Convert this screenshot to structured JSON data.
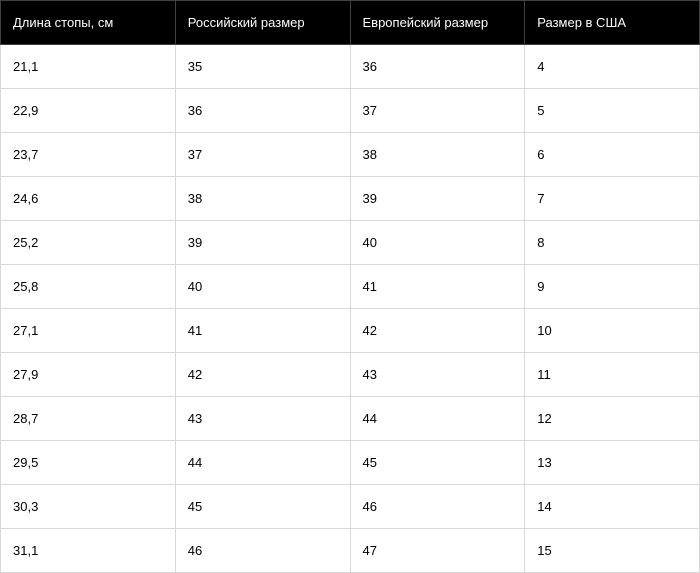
{
  "table": {
    "header_bg": "#000000",
    "header_text_color": "#ffffff",
    "columns": [
      "Длина стопы, см",
      "Российский размер",
      "Европейский размер",
      "Размер в США"
    ],
    "rows": [
      [
        "21,1",
        "35",
        "36",
        "4"
      ],
      [
        "22,9",
        "36",
        "37",
        "5"
      ],
      [
        "23,7",
        "37",
        "38",
        "6"
      ],
      [
        "24,6",
        "38",
        "39",
        "7"
      ],
      [
        "25,2",
        "39",
        "40",
        "8"
      ],
      [
        "25,8",
        "40",
        "41",
        "9"
      ],
      [
        "27,1",
        "41",
        "42",
        "10"
      ],
      [
        "27,9",
        "42",
        "43",
        "11"
      ],
      [
        "28,7",
        "43",
        "44",
        "12"
      ],
      [
        "29,5",
        "44",
        "45",
        "13"
      ],
      [
        "30,3",
        "45",
        "46",
        "14"
      ],
      [
        "31,1",
        "46",
        "47",
        "15"
      ]
    ]
  }
}
